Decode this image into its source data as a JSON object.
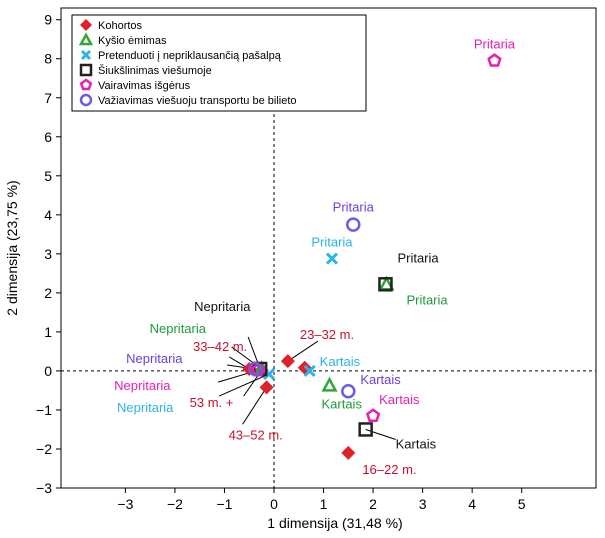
{
  "chart_data": {
    "type": "scatter",
    "xlabel": "1 dimensija (31,48 %)",
    "ylabel": "2 dimensija (23,75 %)",
    "xlim": [
      -4.3,
      6.5
    ],
    "ylim": [
      -3,
      9.3
    ],
    "xticks": [
      -3,
      -2,
      -1,
      0,
      1,
      2,
      3,
      4,
      5
    ],
    "yticks": [
      -3,
      -2,
      -1,
      0,
      1,
      2,
      3,
      4,
      5,
      6,
      7,
      8,
      9
    ],
    "grid": false,
    "zero_lines": "dashed",
    "legend_position": "top-left",
    "series": [
      {
        "name": "Kohortos",
        "marker": "diamond",
        "color": "#e0202a",
        "label_color": "#c8102e",
        "points": [
          {
            "x": -0.5,
            "y": 0.05,
            "label": "33–42 m."
          },
          {
            "x": 0.28,
            "y": 0.25,
            "label": "23–32 m."
          },
          {
            "x": 0.62,
            "y": 0.08,
            "label": ""
          },
          {
            "x": -0.15,
            "y": -0.42,
            "label": "43–52 m."
          },
          {
            "x": -0.25,
            "y": 0.02,
            "label": "53 m. +"
          },
          {
            "x": 1.5,
            "y": -2.1,
            "label": "16–22 m."
          }
        ]
      },
      {
        "name": "Kyšio ėmimas",
        "marker": "triangle",
        "color": "#2ea836",
        "label_color": "#1e9a3a",
        "points": [
          {
            "x": -0.25,
            "y": 0.05,
            "label": "Nepritaria"
          },
          {
            "x": 2.27,
            "y": 2.22,
            "label": "Pritaria"
          },
          {
            "x": 1.12,
            "y": -0.37,
            "label": "Kartais"
          }
        ]
      },
      {
        "name": "Pretenduoti į nepriklausančią pašalpą",
        "marker": "x",
        "color": "#29b5e8",
        "label_color": "#29b5e8",
        "points": [
          {
            "x": -0.1,
            "y": -0.08,
            "label": "Nepritaria"
          },
          {
            "x": 1.17,
            "y": 2.88,
            "label": "Pritaria"
          },
          {
            "x": 0.72,
            "y": 0.0,
            "label": "Kartais"
          }
        ]
      },
      {
        "name": "Šiukšlinimas viešumoje",
        "marker": "square",
        "color": "#222222",
        "label_color": "#111111",
        "points": [
          {
            "x": -0.28,
            "y": 0.05,
            "label": "Nepritaria"
          },
          {
            "x": 2.25,
            "y": 2.22,
            "label": "Pritaria"
          },
          {
            "x": 1.85,
            "y": -1.5,
            "label": "Kartais"
          }
        ]
      },
      {
        "name": "Vairavimas išgėrus",
        "marker": "pentagon",
        "color": "#e71fb4",
        "label_color": "#e71fb4",
        "points": [
          {
            "x": -0.32,
            "y": 0.02,
            "label": "Nepritaria"
          },
          {
            "x": 4.45,
            "y": 7.95,
            "label": "Pritaria"
          },
          {
            "x": 2.0,
            "y": -1.15,
            "label": "Kartais"
          }
        ]
      },
      {
        "name": "Važiavimas viešuoju transportu be bilieto",
        "marker": "circle",
        "color": "#6a5be8",
        "label_color": "#6a3fe0",
        "points": [
          {
            "x": -0.38,
            "y": 0.05,
            "label": "Nepritaria"
          },
          {
            "x": 1.6,
            "y": 3.75,
            "label": "Pritaria"
          },
          {
            "x": 1.5,
            "y": -0.52,
            "label": "Kartais"
          }
        ]
      }
    ]
  }
}
